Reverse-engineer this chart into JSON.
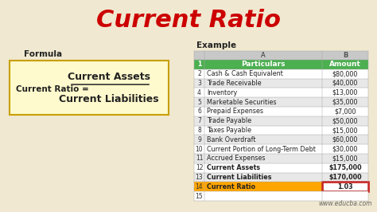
{
  "title": "Current Ratio",
  "title_color": "#CC0000",
  "bg_color": "#F0E8D0",
  "formula_label": "Formula",
  "formula_numerator": "Current Assets",
  "formula_denominator": "Current Liabilities",
  "formula_prefix": "Current Ratio = ",
  "example_label": "Example",
  "col_a_header": "Particulars",
  "col_b_header": "Amount",
  "rows": [
    [
      "2",
      "Cash & Cash Equivalent",
      "$80,000"
    ],
    [
      "3",
      "Trade Receivable",
      "$40,000"
    ],
    [
      "4",
      "Inventory",
      "$13,000"
    ],
    [
      "5",
      "Marketable Securities",
      "$35,000"
    ],
    [
      "6",
      "Prepaid Expenses",
      "$7,000"
    ],
    [
      "7",
      "Trade Payable",
      "$50,000"
    ],
    [
      "8",
      "Taxes Payable",
      "$15,000"
    ],
    [
      "9",
      "Bank Overdraft",
      "$60,000"
    ],
    [
      "10",
      "Current Portion of Long-Term Debt",
      "$30,000"
    ],
    [
      "11",
      "Accrued Expenses",
      "$15,000"
    ],
    [
      "12",
      "Current Assets",
      "$175,000"
    ],
    [
      "13",
      "Current Liabilities",
      "$170,000"
    ],
    [
      "14",
      "Current Ratio",
      "1.03"
    ]
  ],
  "header_bg": "#4CAF50",
  "header_text_color": "#FFFFFF",
  "row14_bg": "#FFA500",
  "row14_amount_border": "#CC0000",
  "alt_row_color": "#E8E8E8",
  "white_row_color": "#FFFFFF",
  "gray_header_color": "#C8C8C8",
  "watermark": "www.educba.com",
  "formula_box_bg": "#FFFACD",
  "formula_box_border": "#C8A000"
}
